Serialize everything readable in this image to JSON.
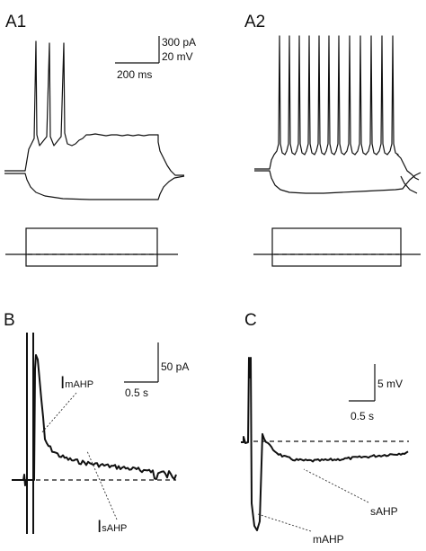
{
  "panels": {
    "a1": {
      "label": "A1"
    },
    "a2": {
      "label": "A2"
    },
    "b": {
      "label": "B"
    },
    "c": {
      "label": "C"
    }
  },
  "scalebars": {
    "a": {
      "current": "300 pA",
      "voltage": "20 mV",
      "time": "200 ms"
    },
    "b": {
      "current": "50 pA",
      "time": "0.5 s"
    },
    "c": {
      "voltage": "5 mV",
      "time": "0.5 s"
    }
  },
  "annotations": {
    "b": {
      "imahp": {
        "main": "I",
        "sub": "mAHP"
      },
      "isahp": {
        "main": "I",
        "sub": "sAHP"
      }
    },
    "c": {
      "mahp": "mAHP",
      "sahp": "sAHP"
    }
  }
}
